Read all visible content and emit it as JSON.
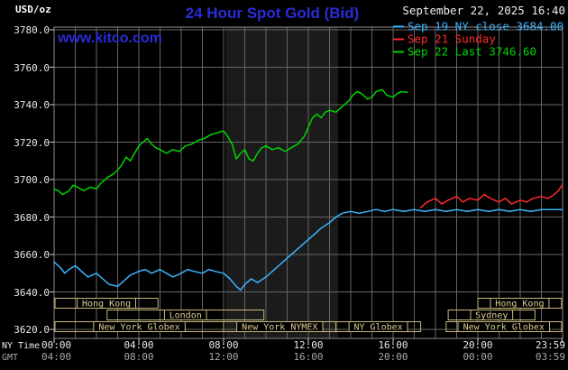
{
  "header": {
    "units_label": "USD/oz",
    "title": "24 Hour Spot Gold (Bid)",
    "datetime": "September 22, 2025 16:40",
    "watermark": "www.kitco.com"
  },
  "colors": {
    "accent_blue": "#2b2bd8",
    "background": "#000000",
    "axis_text": "#e8e8e8",
    "gmt_text": "#a8a8a8"
  },
  "legend": [
    {
      "label": "Sep 19 NY close 3684.00",
      "color": "#3cb4ff"
    },
    {
      "label": "Sep 21 Sunday",
      "color": "#ff2a2a"
    },
    {
      "label": "Sep 22 Last 3746.60",
      "color": "#00d300"
    }
  ],
  "axes": {
    "y_ticks": [
      "3780.0",
      "3760.0",
      "3740.0",
      "3720.0",
      "3700.0",
      "3680.0",
      "3660.0",
      "3640.0",
      "3620.0"
    ],
    "x_ny": [
      "00:00",
      "04:00",
      "08:00",
      "12:00",
      "16:00",
      "20:00",
      "23:59"
    ],
    "x_gmt": [
      "04:00",
      "08:00",
      "12:00",
      "16:00",
      "20:00",
      "00:00",
      "03:59"
    ],
    "ny_row_label": "NY Time",
    "gmt_row_label": "GMT"
  },
  "plot": {
    "grid_color": "#666666",
    "border_color": "#8a8a8a",
    "tick_color": "#cccccc",
    "nymex_band": {
      "start": 8.1,
      "end": 13.4,
      "color": "#1b1b1b"
    }
  },
  "sessions": {
    "box_color": "#c8b87a",
    "text_color": "#dbcd92",
    "rows": [
      [
        {
          "label": "Hong Kong",
          "start": 0,
          "end": 4.9
        },
        {
          "label": "Hong Kong",
          "start": 20,
          "end": 23.95
        }
      ],
      [
        {
          "label": "London",
          "start": 2.5,
          "end": 9.9
        },
        {
          "label": "Sydney",
          "start": 18.6,
          "end": 22.7
        }
      ],
      [
        {
          "label": "New York Globex",
          "start": 0,
          "end": 8
        },
        {
          "label": "New York NYMEX",
          "start": 8,
          "end": 13.3
        },
        {
          "label": "NY Globex",
          "start": 13.3,
          "end": 17.3
        },
        {
          "label": "New York Globex",
          "start": 18.5,
          "end": 23.95
        }
      ]
    ]
  },
  "chart_data": {
    "type": "line",
    "title": "24 Hour Spot Gold (Bid)",
    "x_unit": "NY time, hours 0-24",
    "x_range": [
      0,
      24
    ],
    "y_range": [
      3620,
      3780
    ],
    "y_tick_step": 20,
    "grid": true,
    "legend_position": "top-right",
    "series": [
      {
        "name": "Sep 19 NY close 3684.00",
        "color": "#3cb4ff",
        "points": [
          [
            0,
            3656
          ],
          [
            0.3,
            3653
          ],
          [
            0.5,
            3650
          ],
          [
            0.7,
            3652
          ],
          [
            1,
            3654
          ],
          [
            1.3,
            3651
          ],
          [
            1.6,
            3648
          ],
          [
            2,
            3650
          ],
          [
            2.3,
            3647
          ],
          [
            2.6,
            3644
          ],
          [
            3,
            3643
          ],
          [
            3.3,
            3646
          ],
          [
            3.6,
            3649
          ],
          [
            4,
            3651
          ],
          [
            4.3,
            3652
          ],
          [
            4.6,
            3650
          ],
          [
            5,
            3652
          ],
          [
            5.3,
            3650
          ],
          [
            5.6,
            3648
          ],
          [
            6,
            3650
          ],
          [
            6.3,
            3652
          ],
          [
            6.6,
            3651
          ],
          [
            7,
            3650
          ],
          [
            7.3,
            3652
          ],
          [
            7.6,
            3651
          ],
          [
            8,
            3650
          ],
          [
            8.3,
            3647
          ],
          [
            8.6,
            3643
          ],
          [
            8.8,
            3641
          ],
          [
            9,
            3644
          ],
          [
            9.3,
            3647
          ],
          [
            9.6,
            3645
          ],
          [
            10,
            3648
          ],
          [
            10.3,
            3651
          ],
          [
            10.6,
            3654
          ],
          [
            11,
            3658
          ],
          [
            11.3,
            3661
          ],
          [
            11.6,
            3664
          ],
          [
            12,
            3668
          ],
          [
            12.3,
            3671
          ],
          [
            12.6,
            3674
          ],
          [
            13,
            3677
          ],
          [
            13.3,
            3680
          ],
          [
            13.6,
            3682
          ],
          [
            14,
            3683
          ],
          [
            14.4,
            3682
          ],
          [
            14.8,
            3683
          ],
          [
            15.2,
            3684
          ],
          [
            15.6,
            3683
          ],
          [
            16,
            3684
          ],
          [
            16.5,
            3683
          ],
          [
            17,
            3684
          ],
          [
            17.5,
            3683
          ],
          [
            18,
            3684
          ],
          [
            18.5,
            3683
          ],
          [
            19,
            3684
          ],
          [
            19.5,
            3683
          ],
          [
            20,
            3684
          ],
          [
            20.5,
            3683
          ],
          [
            21,
            3684
          ],
          [
            21.5,
            3683
          ],
          [
            22,
            3684
          ],
          [
            22.5,
            3683
          ],
          [
            23,
            3684
          ],
          [
            23.5,
            3684
          ],
          [
            23.98,
            3684
          ]
        ]
      },
      {
        "name": "Sep 21 Sunday",
        "color": "#ff2a2a",
        "points": [
          [
            17.3,
            3685
          ],
          [
            17.6,
            3688
          ],
          [
            18,
            3690
          ],
          [
            18.3,
            3687
          ],
          [
            18.6,
            3689
          ],
          [
            19,
            3691
          ],
          [
            19.3,
            3688
          ],
          [
            19.6,
            3690
          ],
          [
            20,
            3689
          ],
          [
            20.3,
            3692
          ],
          [
            20.6,
            3690
          ],
          [
            21,
            3688
          ],
          [
            21.3,
            3690
          ],
          [
            21.6,
            3687
          ],
          [
            22,
            3689
          ],
          [
            22.3,
            3688
          ],
          [
            22.6,
            3690
          ],
          [
            23,
            3691
          ],
          [
            23.3,
            3690
          ],
          [
            23.6,
            3692
          ],
          [
            23.8,
            3694
          ],
          [
            23.98,
            3697
          ]
        ]
      },
      {
        "name": "Sep 22 Last 3746.60",
        "color": "#00d300",
        "points": [
          [
            0,
            3695
          ],
          [
            0.2,
            3694
          ],
          [
            0.4,
            3692
          ],
          [
            0.7,
            3694
          ],
          [
            0.9,
            3697
          ],
          [
            1.1,
            3696
          ],
          [
            1.4,
            3694
          ],
          [
            1.7,
            3696
          ],
          [
            2,
            3695
          ],
          [
            2.2,
            3698
          ],
          [
            2.5,
            3701
          ],
          [
            2.8,
            3703
          ],
          [
            3,
            3705
          ],
          [
            3.2,
            3708
          ],
          [
            3.4,
            3712
          ],
          [
            3.6,
            3710
          ],
          [
            3.8,
            3714
          ],
          [
            4,
            3718
          ],
          [
            4.2,
            3720
          ],
          [
            4.4,
            3722
          ],
          [
            4.6,
            3719
          ],
          [
            4.8,
            3717
          ],
          [
            5,
            3716
          ],
          [
            5.3,
            3714
          ],
          [
            5.6,
            3716
          ],
          [
            5.9,
            3715
          ],
          [
            6.2,
            3718
          ],
          [
            6.5,
            3719
          ],
          [
            6.8,
            3721
          ],
          [
            7.1,
            3722
          ],
          [
            7.4,
            3724
          ],
          [
            7.7,
            3725
          ],
          [
            8,
            3726
          ],
          [
            8.2,
            3723
          ],
          [
            8.4,
            3719
          ],
          [
            8.6,
            3711
          ],
          [
            8.8,
            3714
          ],
          [
            9,
            3716
          ],
          [
            9.2,
            3711
          ],
          [
            9.4,
            3710
          ],
          [
            9.6,
            3714
          ],
          [
            9.8,
            3717
          ],
          [
            10,
            3718
          ],
          [
            10.3,
            3716
          ],
          [
            10.6,
            3717
          ],
          [
            10.9,
            3715
          ],
          [
            11.2,
            3717
          ],
          [
            11.5,
            3719
          ],
          [
            11.8,
            3723
          ],
          [
            12,
            3728
          ],
          [
            12.2,
            3733
          ],
          [
            12.4,
            3735
          ],
          [
            12.6,
            3733
          ],
          [
            12.8,
            3736
          ],
          [
            13,
            3737
          ],
          [
            13.3,
            3736
          ],
          [
            13.6,
            3739
          ],
          [
            13.9,
            3742
          ],
          [
            14.1,
            3745
          ],
          [
            14.3,
            3747
          ],
          [
            14.5,
            3746
          ],
          [
            14.8,
            3743
          ],
          [
            15,
            3744
          ],
          [
            15.2,
            3747
          ],
          [
            15.5,
            3748
          ],
          [
            15.7,
            3745
          ],
          [
            16,
            3744
          ],
          [
            16.2,
            3746
          ],
          [
            16.4,
            3747
          ],
          [
            16.67,
            3746.6
          ]
        ]
      }
    ]
  }
}
